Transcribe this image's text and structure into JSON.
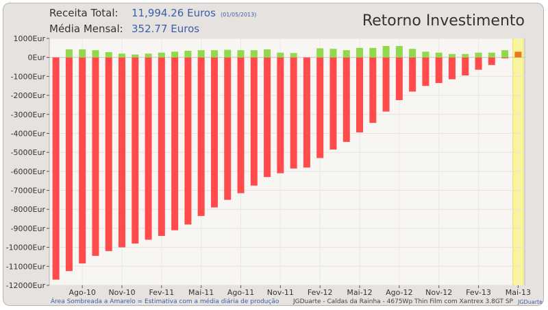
{
  "header": {
    "receita_label": "Receita Total:",
    "receita_value": "11,994.26 Euros",
    "receita_date": "(01/05/2013)",
    "media_label": "Média Mensal:",
    "media_value": "352.77 Euros",
    "title": "Retorno Investimento"
  },
  "footer": {
    "note": "Área Sombreada a Amarelo = Estimativa com a média diária de produção",
    "credit": "JGDuarte  -  Caldas da Rainha  -  4675Wp Thin Film com Xantrex 3.8GT SP",
    "brand": "JGDuarte"
  },
  "colors": {
    "negative": "#ff4b4b",
    "positive": "#8fd94a",
    "estimate": "#e87a1c",
    "highlight": "#fbf59a"
  },
  "chart_data": {
    "type": "bar",
    "title": "Retorno Investimento",
    "ylim": [
      -12000,
      1000
    ],
    "yticks": [
      1000,
      0,
      -1000,
      -2000,
      -3000,
      -4000,
      -5000,
      -6000,
      -7000,
      -8000,
      -9000,
      -10000,
      -11000,
      -12000
    ],
    "ytick_labels": [
      "1000Eur",
      "0Eur",
      "-1000Eur",
      "-2000Eur",
      "-3000Eur",
      "-4000Eur",
      "-5000Eur",
      "-6000Eur",
      "-7000Eur",
      "-8000Eur",
      "-9000Eur",
      "-10000Eur",
      "-11000Eur",
      "-12000Eur"
    ],
    "xtick_labels": [
      {
        "index": 2,
        "label": "Ago-10"
      },
      {
        "index": 5,
        "label": "Nov-10"
      },
      {
        "index": 8,
        "label": "Fev-11"
      },
      {
        "index": 11,
        "label": "Mai-11"
      },
      {
        "index": 14,
        "label": "Ago-11"
      },
      {
        "index": 17,
        "label": "Nov-11"
      },
      {
        "index": 20,
        "label": "Fev-12"
      },
      {
        "index": 23,
        "label": "Mai-12"
      },
      {
        "index": 26,
        "label": "Ago-12"
      },
      {
        "index": 29,
        "label": "Nov-12"
      },
      {
        "index": 32,
        "label": "Fev-13"
      },
      {
        "index": 35,
        "label": "Mai-13"
      }
    ],
    "grid": true,
    "legend": "none",
    "series": [
      {
        "values": [
          -11700,
          -11250,
          -10850,
          -10450,
          -10200,
          -10000,
          -9800,
          -9600,
          -9400,
          -9100,
          -8800,
          -8350,
          -7900,
          -7500,
          -7150,
          -6750,
          -6300,
          -6100,
          -5850,
          -5800,
          -5300,
          -4850,
          -4450,
          -3950,
          -3450,
          -2850,
          -2250,
          -1800,
          -1500,
          -1350,
          -1150,
          -950,
          -650,
          -400,
          -50,
          0
        ]
      },
      {
        "values": [
          0,
          420,
          420,
          380,
          280,
          200,
          150,
          200,
          250,
          300,
          350,
          380,
          380,
          400,
          380,
          380,
          420,
          250,
          230,
          0,
          480,
          450,
          380,
          500,
          500,
          600,
          600,
          450,
          300,
          250,
          180,
          180,
          250,
          250,
          380,
          0
        ]
      },
      {
        "values": [
          0,
          0,
          0,
          0,
          0,
          0,
          0,
          0,
          0,
          0,
          0,
          0,
          0,
          0,
          0,
          0,
          0,
          0,
          0,
          0,
          0,
          0,
          0,
          0,
          0,
          0,
          0,
          0,
          0,
          0,
          0,
          0,
          0,
          0,
          0,
          300
        ]
      }
    ],
    "estimated_index": 35
  }
}
